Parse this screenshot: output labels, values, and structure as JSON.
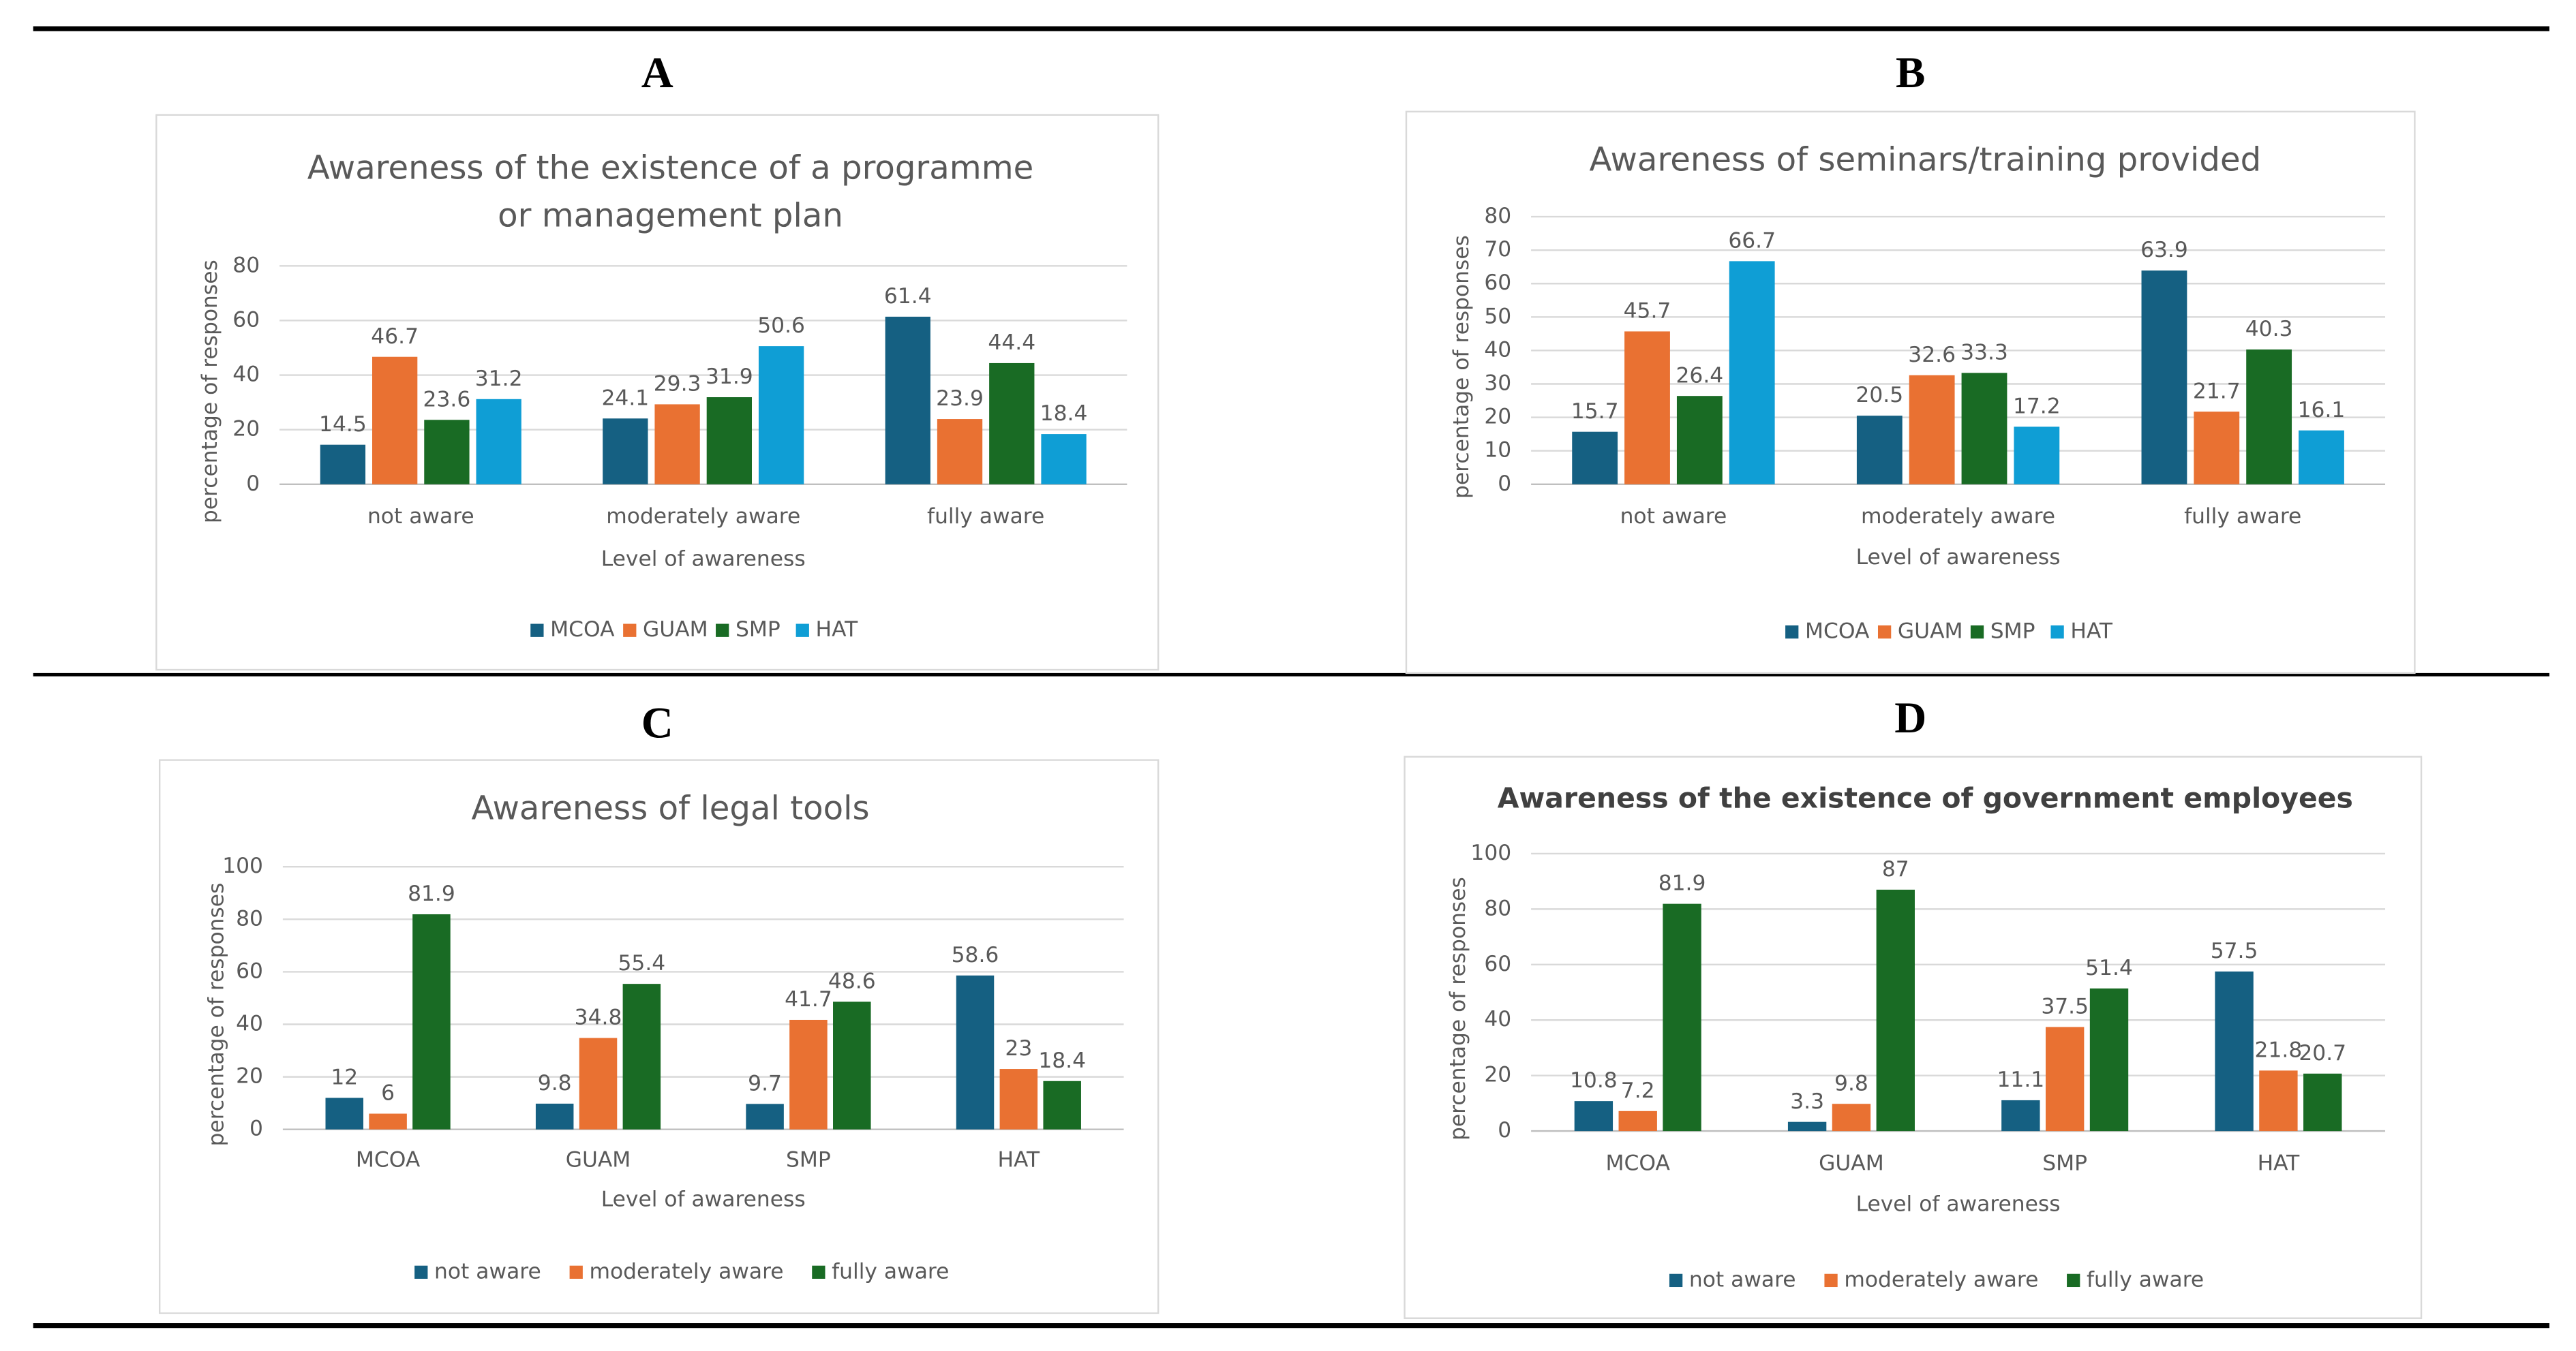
{
  "chart_data": [
    {
      "type": "bar",
      "panel": "A",
      "title": "Awareness of the existence of a programme or management plan",
      "title_bold": false,
      "x_label": "Level of awareness",
      "y_label": "percentage of responses",
      "categories": [
        "not aware",
        "moderately aware",
        "fully aware"
      ],
      "series": [
        {
          "name": "MCOA",
          "color": "#156082",
          "values": [
            14.5,
            24.1,
            61.4
          ]
        },
        {
          "name": "GUAM",
          "color": "#e97132",
          "values": [
            46.7,
            29.3,
            23.9
          ]
        },
        {
          "name": "SMP",
          "color": "#196b24",
          "values": [
            23.6,
            31.9,
            44.4
          ]
        },
        {
          "name": "HAT",
          "color": "#0f9ed5",
          "values": [
            31.2,
            50.6,
            18.4
          ]
        }
      ],
      "ylim": [
        0,
        80
      ],
      "yticks": [
        0,
        20,
        40,
        60,
        80
      ],
      "grid": true,
      "legend": "bottom"
    },
    {
      "type": "bar",
      "panel": "B",
      "title": "Awareness of seminars/training provided",
      "title_bold": false,
      "x_label": "Level of awareness",
      "y_label": "percentage of responses",
      "categories": [
        "not aware",
        "moderately aware",
        "fully aware"
      ],
      "series": [
        {
          "name": "MCOA",
          "color": "#156082",
          "values": [
            15.7,
            20.5,
            63.9
          ]
        },
        {
          "name": "GUAM",
          "color": "#e97132",
          "values": [
            45.7,
            32.6,
            21.7
          ]
        },
        {
          "name": "SMP",
          "color": "#196b24",
          "values": [
            26.4,
            33.3,
            40.3
          ]
        },
        {
          "name": "HAT",
          "color": "#0f9ed5",
          "values": [
            66.7,
            17.2,
            16.1
          ]
        }
      ],
      "ylim": [
        0,
        80
      ],
      "yticks": [
        0,
        10,
        20,
        30,
        40,
        50,
        60,
        70,
        80
      ],
      "grid": true,
      "legend": "bottom"
    },
    {
      "type": "bar",
      "panel": "C",
      "title": "Awareness of legal tools",
      "title_bold": false,
      "x_label": "Level of awareness",
      "y_label": "percentage of responses",
      "categories": [
        "MCOA",
        "GUAM",
        "SMP",
        "HAT"
      ],
      "series": [
        {
          "name": "not aware",
          "color": "#156082",
          "values": [
            12,
            9.8,
            9.7,
            58.6
          ]
        },
        {
          "name": "moderately aware",
          "color": "#e97132",
          "values": [
            6,
            34.8,
            41.7,
            23
          ]
        },
        {
          "name": "fully aware",
          "color": "#196b24",
          "values": [
            81.9,
            55.4,
            48.6,
            18.4
          ]
        }
      ],
      "ylim": [
        0,
        100
      ],
      "yticks": [
        0,
        20,
        40,
        60,
        80,
        100
      ],
      "grid": true,
      "legend": "bottom"
    },
    {
      "type": "bar",
      "panel": "D",
      "title": "Awareness of the existence of government employees",
      "title_bold": true,
      "x_label": "Level of awareness",
      "y_label": "percentage of responses",
      "categories": [
        "MCOA",
        "GUAM",
        "SMP",
        "HAT"
      ],
      "series": [
        {
          "name": "not aware",
          "color": "#156082",
          "values": [
            10.8,
            3.3,
            11.1,
            57.5
          ]
        },
        {
          "name": "moderately aware",
          "color": "#e97132",
          "values": [
            7.2,
            9.8,
            37.5,
            21.8
          ]
        },
        {
          "name": "fully aware",
          "color": "#196b24",
          "values": [
            81.9,
            87,
            51.4,
            20.7
          ]
        }
      ],
      "ylim": [
        0,
        100
      ],
      "yticks": [
        0,
        20,
        40,
        60,
        80,
        100
      ],
      "grid": true,
      "legend": "bottom"
    }
  ]
}
